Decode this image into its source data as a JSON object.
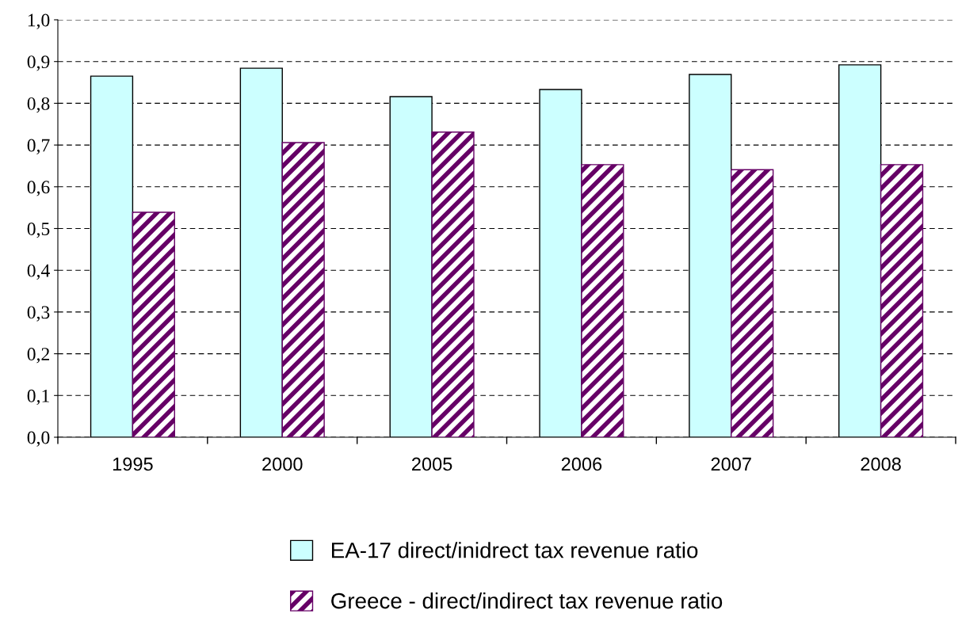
{
  "chart_data": {
    "type": "bar",
    "categories": [
      "1995",
      "2000",
      "2005",
      "2006",
      "2007",
      "2008"
    ],
    "series": [
      {
        "name": "EA-17 direct/inidrect tax revenue ratio",
        "color": "#ccffff",
        "values": [
          0.865,
          0.884,
          0.816,
          0.833,
          0.869,
          0.892
        ]
      },
      {
        "name": "Greece - direct/indirect tax revenue ratio",
        "color": "#660066",
        "values": [
          0.539,
          0.706,
          0.731,
          0.653,
          0.641,
          0.653
        ]
      }
    ],
    "ylim": [
      0,
      1
    ],
    "yticks": [
      {
        "value": 0,
        "label": "0,0"
      },
      {
        "value": 0.1,
        "label": "0,1"
      },
      {
        "value": 0.2,
        "label": "0,2"
      },
      {
        "value": 0.3,
        "label": "0,3"
      },
      {
        "value": 0.4,
        "label": "0,4"
      },
      {
        "value": 0.5,
        "label": "0,5"
      },
      {
        "value": 0.6,
        "label": "0,6"
      },
      {
        "value": 0.7,
        "label": "0,7"
      },
      {
        "value": 0.8,
        "label": "0,8"
      },
      {
        "value": 0.9,
        "label": "0,9"
      },
      {
        "value": 1.0,
        "label": "1,0"
      }
    ],
    "grid": "y",
    "legend": "bottom"
  }
}
